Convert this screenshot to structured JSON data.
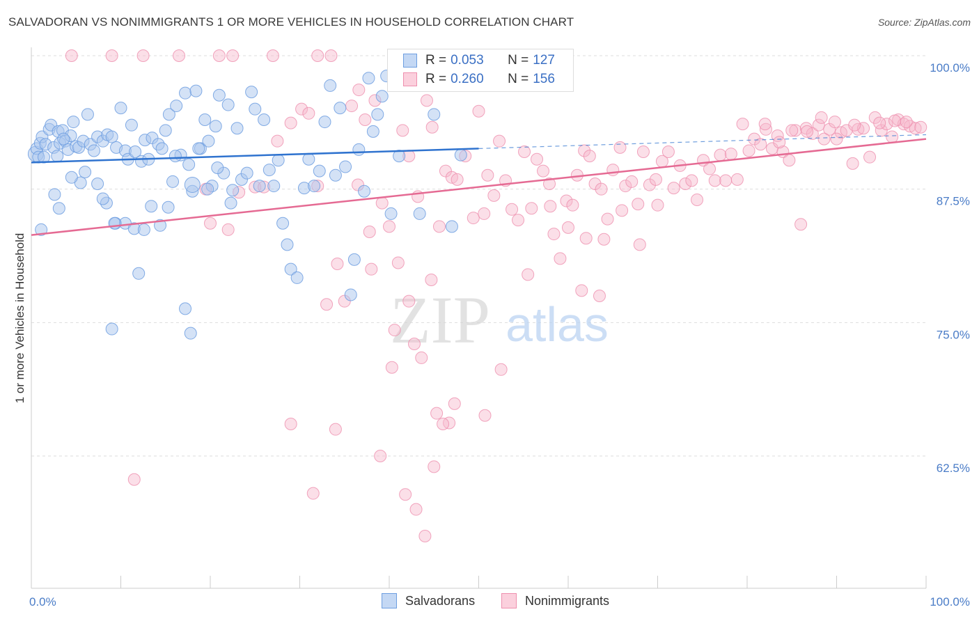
{
  "header": {
    "title": "SALVADORAN VS NONIMMIGRANTS 1 OR MORE VEHICLES IN HOUSEHOLD CORRELATION CHART",
    "source": "Source: ZipAtlas.com"
  },
  "watermark": {
    "zip": "ZIP",
    "atlas": "atlas"
  },
  "legend": {
    "r_label": "R =",
    "n_label": "N =",
    "rows": [
      {
        "r": "0.053",
        "n": "127"
      },
      {
        "r": "0.260",
        "n": "156"
      }
    ]
  },
  "colors": {
    "blue_fill": "#a9c6ee",
    "blue_stroke": "#6d9ee0",
    "blue_line": "#2f73cf",
    "pink_fill": "#f7b9cc",
    "pink_stroke": "#ee8fae",
    "pink_line": "#e56a93",
    "tick_text": "#4a7cc7",
    "grid": "#dddddd"
  },
  "chart_data": {
    "type": "scatter",
    "title": "SALVADORAN VS NONIMMIGRANTS 1 OR MORE VEHICLES IN HOUSEHOLD CORRELATION CHART",
    "xlabel": "",
    "ylabel": "1 or more Vehicles in Household",
    "xlim": [
      0,
      100
    ],
    "ylim": [
      50.5,
      101
    ],
    "x_tick_labels": [
      "0.0%",
      "100.0%"
    ],
    "y_ticks": [
      62.5,
      75.0,
      87.5,
      100.0
    ],
    "y_tick_labels": [
      "62.5%",
      "75.0%",
      "87.5%",
      "100.0%"
    ],
    "grid": true,
    "legend_position": "top-center",
    "series": [
      {
        "name": "Salvadorans",
        "color": "#a9c6ee",
        "trend": {
          "x": [
            0,
            50
          ],
          "y": [
            90.0,
            91.3
          ],
          "dashed_to": [
            100,
            92.6
          ]
        },
        "points": [
          [
            0.5,
            90.8
          ],
          [
            0.6,
            91.3
          ],
          [
            0.8,
            90.5
          ],
          [
            1.0,
            91.8
          ],
          [
            1.2,
            92.4
          ],
          [
            1.4,
            90.5
          ],
          [
            1.6,
            91.7
          ],
          [
            2.0,
            93.1
          ],
          [
            2.2,
            93.5
          ],
          [
            2.5,
            91.4
          ],
          [
            3.0,
            92.9
          ],
          [
            3.2,
            91.8
          ],
          [
            3.5,
            93.0
          ],
          [
            3.8,
            92.0
          ],
          [
            4.1,
            91.2
          ],
          [
            4.4,
            92.5
          ],
          [
            4.7,
            93.8
          ],
          [
            5.0,
            91.5
          ],
          [
            5.3,
            91.4
          ],
          [
            5.8,
            92.0
          ],
          [
            6.3,
            94.5
          ],
          [
            6.6,
            91.7
          ],
          [
            7.0,
            91.1
          ],
          [
            7.4,
            92.4
          ],
          [
            8.0,
            92.0
          ],
          [
            8.5,
            92.6
          ],
          [
            9.0,
            92.4
          ],
          [
            9.5,
            91.4
          ],
          [
            10.0,
            95.1
          ],
          [
            10.5,
            91.1
          ],
          [
            10.8,
            90.3
          ],
          [
            11.2,
            93.5
          ],
          [
            11.6,
            91.0
          ],
          [
            12.3,
            90.1
          ],
          [
            12.7,
            92.1
          ],
          [
            13.1,
            90.3
          ],
          [
            13.5,
            92.3
          ],
          [
            14.2,
            91.7
          ],
          [
            14.6,
            91.3
          ],
          [
            15.0,
            93.0
          ],
          [
            15.4,
            94.5
          ],
          [
            15.8,
            88.2
          ],
          [
            16.2,
            95.3
          ],
          [
            16.7,
            90.7
          ],
          [
            17.2,
            96.5
          ],
          [
            17.6,
            89.8
          ],
          [
            18.0,
            87.3
          ],
          [
            18.4,
            96.7
          ],
          [
            18.9,
            91.3
          ],
          [
            19.4,
            94.0
          ],
          [
            19.8,
            92.0
          ],
          [
            20.2,
            87.8
          ],
          [
            20.6,
            93.4
          ],
          [
            21.0,
            96.3
          ],
          [
            21.5,
            89.0
          ],
          [
            22.0,
            95.4
          ],
          [
            22.5,
            87.4
          ],
          [
            23.0,
            93.2
          ],
          [
            23.5,
            88.4
          ],
          [
            24.1,
            89.0
          ],
          [
            24.6,
            96.6
          ],
          [
            25.0,
            95.0
          ],
          [
            25.5,
            87.8
          ],
          [
            26.0,
            94.0
          ],
          [
            26.6,
            89.3
          ],
          [
            27.1,
            87.8
          ],
          [
            27.6,
            90.2
          ],
          [
            28.1,
            84.3
          ],
          [
            28.6,
            82.3
          ],
          [
            29.0,
            80.0
          ],
          [
            29.7,
            79.2
          ],
          [
            30.5,
            87.6
          ],
          [
            31.0,
            90.3
          ],
          [
            31.6,
            87.8
          ],
          [
            32.2,
            89.2
          ],
          [
            32.8,
            93.8
          ],
          [
            33.4,
            97.2
          ],
          [
            34.0,
            88.8
          ],
          [
            34.5,
            95.1
          ],
          [
            35.1,
            89.6
          ],
          [
            35.7,
            77.6
          ],
          [
            36.1,
            80.9
          ],
          [
            36.6,
            91.2
          ],
          [
            37.2,
            87.3
          ],
          [
            37.7,
            97.9
          ],
          [
            38.2,
            92.9
          ],
          [
            38.7,
            94.5
          ],
          [
            39.2,
            96.2
          ],
          [
            39.7,
            98.1
          ],
          [
            40.2,
            85.2
          ],
          [
            41.1,
            90.6
          ],
          [
            42.5,
            98.1
          ],
          [
            43.4,
            85.2
          ],
          [
            45.0,
            94.5
          ],
          [
            47.0,
            84.0
          ],
          [
            48.0,
            90.7
          ],
          [
            49.1,
            97.2
          ],
          [
            50.0,
            99.5
          ],
          [
            3.1,
            85.7
          ],
          [
            2.6,
            87.0
          ],
          [
            6.0,
            89.1
          ],
          [
            7.4,
            88.0
          ],
          [
            8.4,
            86.2
          ],
          [
            9.4,
            84.3
          ],
          [
            10.5,
            84.3
          ],
          [
            11.5,
            83.8
          ],
          [
            12.0,
            79.6
          ],
          [
            12.6,
            83.7
          ],
          [
            13.4,
            85.9
          ],
          [
            14.4,
            84.1
          ],
          [
            15.3,
            85.8
          ],
          [
            16.1,
            90.6
          ],
          [
            17.2,
            76.3
          ],
          [
            17.8,
            74.0
          ],
          [
            18.7,
            91.3
          ],
          [
            19.7,
            87.5
          ],
          [
            20.8,
            89.5
          ],
          [
            22.3,
            86.2
          ],
          [
            9.0,
            74.4
          ],
          [
            9.3,
            84.3
          ],
          [
            5.5,
            88.1
          ],
          [
            4.5,
            88.6
          ],
          [
            8.0,
            86.6
          ],
          [
            3.6,
            92.2
          ],
          [
            2.9,
            90.6
          ],
          [
            1.1,
            83.7
          ],
          [
            18.0,
            87.9
          ]
        ]
      },
      {
        "name": "Nonimmigrants",
        "color": "#f7b9cc",
        "trend": {
          "x": [
            0,
            100
          ],
          "y": [
            83.2,
            92.2
          ]
        },
        "points": [
          [
            4.5,
            100
          ],
          [
            9.0,
            100
          ],
          [
            12.5,
            100
          ],
          [
            16.5,
            100
          ],
          [
            21.0,
            100
          ],
          [
            22.5,
            100
          ],
          [
            27.0,
            100
          ],
          [
            32.0,
            100
          ],
          [
            33.5,
            100
          ],
          [
            11.5,
            60.3
          ],
          [
            19.5,
            87.5
          ],
          [
            20.0,
            84.3
          ],
          [
            22.0,
            83.7
          ],
          [
            23.2,
            87.2
          ],
          [
            25.0,
            87.7
          ],
          [
            26.0,
            87.7
          ],
          [
            27.5,
            92.0
          ],
          [
            29.0,
            93.7
          ],
          [
            30.2,
            95.0
          ],
          [
            31.0,
            94.6
          ],
          [
            32.0,
            87.8
          ],
          [
            33.0,
            76.7
          ],
          [
            34.2,
            80.5
          ],
          [
            35.0,
            77.0
          ],
          [
            35.8,
            95.3
          ],
          [
            36.5,
            87.9
          ],
          [
            37.3,
            94.0
          ],
          [
            37.8,
            83.5
          ],
          [
            38.4,
            95.8
          ],
          [
            39.2,
            86.2
          ],
          [
            40.0,
            84.0
          ],
          [
            40.6,
            74.3
          ],
          [
            41.0,
            80.6
          ],
          [
            41.5,
            93.0
          ],
          [
            42.2,
            90.6
          ],
          [
            43.2,
            86.8
          ],
          [
            43.6,
            71.7
          ],
          [
            44.2,
            95.8
          ],
          [
            44.8,
            93.3
          ],
          [
            45.6,
            84.0
          ],
          [
            46.3,
            89.2
          ],
          [
            47.0,
            88.6
          ],
          [
            47.6,
            88.4
          ],
          [
            48.5,
            90.6
          ],
          [
            49.4,
            84.8
          ],
          [
            50.0,
            94.8
          ],
          [
            50.6,
            85.2
          ],
          [
            51.0,
            88.8
          ],
          [
            51.7,
            86.9
          ],
          [
            52.3,
            92.0
          ],
          [
            53.0,
            88.3
          ],
          [
            53.7,
            85.6
          ],
          [
            54.4,
            84.6
          ],
          [
            55.1,
            91.0
          ],
          [
            55.9,
            85.7
          ],
          [
            56.5,
            90.3
          ],
          [
            57.2,
            89.2
          ],
          [
            57.9,
            88.0
          ],
          [
            58.4,
            83.3
          ],
          [
            59.1,
            81.0
          ],
          [
            59.8,
            86.4
          ],
          [
            60.5,
            86.0
          ],
          [
            61.0,
            88.8
          ],
          [
            61.8,
            91.1
          ],
          [
            62.4,
            90.6
          ],
          [
            63.0,
            88.0
          ],
          [
            63.7,
            87.5
          ],
          [
            64.4,
            84.7
          ],
          [
            65.0,
            89.3
          ],
          [
            65.8,
            91.4
          ],
          [
            66.4,
            87.8
          ],
          [
            67.1,
            88.2
          ],
          [
            67.8,
            86.1
          ],
          [
            68.4,
            91.0
          ],
          [
            69.1,
            87.9
          ],
          [
            69.8,
            88.4
          ],
          [
            70.5,
            90.1
          ],
          [
            71.2,
            91.0
          ],
          [
            71.8,
            87.6
          ],
          [
            72.5,
            89.7
          ],
          [
            73.1,
            88.0
          ],
          [
            73.8,
            88.3
          ],
          [
            74.4,
            86.5
          ],
          [
            75.1,
            90.2
          ],
          [
            75.8,
            89.4
          ],
          [
            76.4,
            88.3
          ],
          [
            77.0,
            90.7
          ],
          [
            77.6,
            88.3
          ],
          [
            78.2,
            90.8
          ],
          [
            78.9,
            88.4
          ],
          [
            79.5,
            93.6
          ],
          [
            80.2,
            91.1
          ],
          [
            80.8,
            92.2
          ],
          [
            81.5,
            91.7
          ],
          [
            82.1,
            93.1
          ],
          [
            82.8,
            91.3
          ],
          [
            83.4,
            92.5
          ],
          [
            84.0,
            91.0
          ],
          [
            84.7,
            90.2
          ],
          [
            85.4,
            93.0
          ],
          [
            86.0,
            84.2
          ],
          [
            86.6,
            93.2
          ],
          [
            87.3,
            92.7
          ],
          [
            88.0,
            93.5
          ],
          [
            88.6,
            92.2
          ],
          [
            89.2,
            93.1
          ],
          [
            89.8,
            93.8
          ],
          [
            90.5,
            92.8
          ],
          [
            91.1,
            93.0
          ],
          [
            91.8,
            89.9
          ],
          [
            92.4,
            93.1
          ],
          [
            93.0,
            93.2
          ],
          [
            93.7,
            90.5
          ],
          [
            94.3,
            94.2
          ],
          [
            95.0,
            93.0
          ],
          [
            95.6,
            93.6
          ],
          [
            96.2,
            92.4
          ],
          [
            96.9,
            94.0
          ],
          [
            97.5,
            93.6
          ],
          [
            98.2,
            93.4
          ],
          [
            98.8,
            93.2
          ],
          [
            99.4,
            93.3
          ],
          [
            94.8,
            93.7
          ],
          [
            96.5,
            93.9
          ],
          [
            97.8,
            93.8
          ],
          [
            92.0,
            93.5
          ],
          [
            90.0,
            92.2
          ],
          [
            88.3,
            94.2
          ],
          [
            86.7,
            92.9
          ],
          [
            85.0,
            93.0
          ],
          [
            83.6,
            91.9
          ],
          [
            82.0,
            93.6
          ],
          [
            52.5,
            70.6
          ],
          [
            50.7,
            66.3
          ],
          [
            47.3,
            67.4
          ],
          [
            46.7,
            65.6
          ],
          [
            46.0,
            65.5
          ],
          [
            45.3,
            66.5
          ],
          [
            44.7,
            79.0
          ],
          [
            42.8,
            73.0
          ],
          [
            42.2,
            77.0
          ],
          [
            40.3,
            70.8
          ],
          [
            36.6,
            96.8
          ],
          [
            55.5,
            79.5
          ],
          [
            58.0,
            85.9
          ],
          [
            60.0,
            83.9
          ],
          [
            62.0,
            82.9
          ],
          [
            64.0,
            82.8
          ],
          [
            66.0,
            85.5
          ],
          [
            68.0,
            82.3
          ],
          [
            70.0,
            86.0
          ],
          [
            61.5,
            78.0
          ],
          [
            63.5,
            77.5
          ],
          [
            38.0,
            80.0
          ],
          [
            39.0,
            62.5
          ],
          [
            41.8,
            58.9
          ],
          [
            43.0,
            57.5
          ],
          [
            44.0,
            55.0
          ],
          [
            45.0,
            61.5
          ],
          [
            34.0,
            65.0
          ],
          [
            29.0,
            65.5
          ],
          [
            31.5,
            59.0
          ]
        ]
      }
    ]
  },
  "bottom_legend": [
    {
      "label": "Salvadorans"
    },
    {
      "label": "Nonimmigrants"
    }
  ]
}
